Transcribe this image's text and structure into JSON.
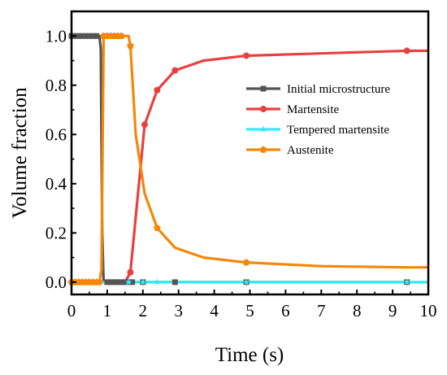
{
  "chart_data": {
    "type": "line",
    "xlabel": "Time (s)",
    "ylabel": "Volume fraction",
    "xlim": [
      0,
      10
    ],
    "ylim": [
      -0.05,
      1.1
    ],
    "x_ticks": [
      "0",
      "1",
      "2",
      "3",
      "4",
      "5",
      "6",
      "7",
      "8",
      "9",
      "10"
    ],
    "y_ticks": [
      "0.0",
      "0.2",
      "0.4",
      "0.6",
      "0.8",
      "1.0"
    ],
    "x_tick_values": [
      0,
      1,
      2,
      3,
      4,
      5,
      6,
      7,
      8,
      9,
      10
    ],
    "y_tick_values": [
      0.0,
      0.2,
      0.4,
      0.6,
      0.8,
      1.0
    ],
    "grid": false,
    "legend_position": "right",
    "series": [
      {
        "name": "Initial microstructure",
        "color": "#555555",
        "marker": "square",
        "x": [
          0,
          0.1,
          0.2,
          0.3,
          0.4,
          0.5,
          0.6,
          0.7,
          0.78,
          0.82,
          0.86,
          0.9,
          1.0,
          1.1,
          1.2,
          1.3,
          1.4,
          1.5,
          1.6,
          1.7,
          2.0,
          2.9,
          4.9,
          9.4
        ],
        "y": [
          1,
          1,
          1,
          1,
          1,
          1,
          1,
          1,
          1,
          0.95,
          0.2,
          0,
          0,
          0,
          0,
          0,
          0,
          0,
          0,
          0,
          0,
          0,
          0,
          0
        ],
        "marker_x": [
          0,
          0.1,
          0.2,
          0.3,
          0.4,
          0.5,
          0.6,
          0.7,
          1.0,
          1.1,
          1.2,
          1.3,
          1.4,
          1.5,
          1.6,
          1.7,
          2.0,
          2.9,
          4.9,
          9.4
        ]
      },
      {
        "name": "Martensite",
        "color": "#e8403f",
        "marker": "circle",
        "x": [
          0,
          0.5,
          1.0,
          1.5,
          1.65,
          2.05,
          2.4,
          2.9,
          3.7,
          4.9,
          9.4,
          10
        ],
        "y": [
          0,
          0,
          0,
          0,
          0.04,
          0.64,
          0.78,
          0.86,
          0.9,
          0.92,
          0.94,
          0.94
        ],
        "marker_x": [
          1.65,
          2.05,
          2.4,
          2.9,
          4.9,
          9.4
        ]
      },
      {
        "name": "Tempered martensite",
        "color": "#33eaf5",
        "marker": "star",
        "x": [
          0,
          0.5,
          1.0,
          1.5,
          2.0,
          2.4,
          3.0,
          5.0,
          9.4,
          10
        ],
        "y": [
          0,
          0,
          0,
          0,
          0,
          0,
          0,
          0,
          0,
          0
        ],
        "marker_x": [
          1.6,
          2.0,
          2.4,
          4.9,
          9.4
        ]
      },
      {
        "name": "Austenite",
        "color": "#f5870a",
        "marker": "pentagon",
        "x": [
          0,
          0.1,
          0.2,
          0.3,
          0.4,
          0.5,
          0.6,
          0.7,
          0.78,
          0.84,
          0.9,
          1.0,
          1.1,
          1.2,
          1.3,
          1.4,
          1.5,
          1.6,
          1.65,
          1.8,
          2.05,
          2.4,
          2.9,
          3.7,
          4.9,
          7.0,
          9.4,
          10
        ],
        "y": [
          0,
          0,
          0,
          0,
          0,
          0,
          0,
          0,
          0,
          0.05,
          1.0,
          1.0,
          1.0,
          1.0,
          1.0,
          1.0,
          1.0,
          1.0,
          0.96,
          0.6,
          0.36,
          0.22,
          0.14,
          0.1,
          0.08,
          0.065,
          0.06,
          0.06
        ],
        "marker_x": [
          0,
          0.1,
          0.2,
          0.3,
          0.4,
          0.5,
          0.6,
          0.7,
          0.78,
          0.9,
          1.0,
          1.1,
          1.2,
          1.3,
          1.4,
          1.65,
          2.4,
          4.9
        ]
      }
    ]
  }
}
